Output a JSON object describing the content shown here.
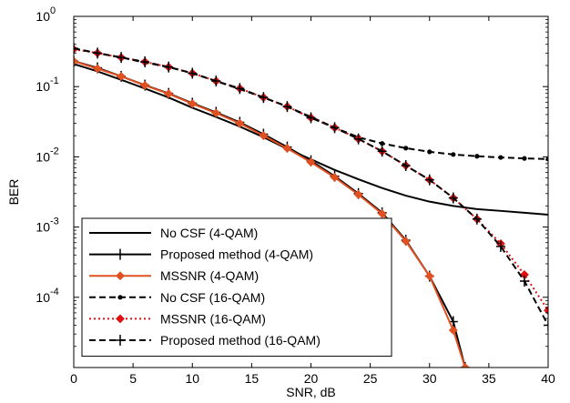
{
  "chart_data": {
    "type": "line",
    "title": "",
    "xlabel": "SNR, dB",
    "ylabel": "BER",
    "xlim": [
      0,
      40
    ],
    "ylim": [
      1e-05,
      1
    ],
    "yscale": "log",
    "grid": false,
    "legend_position": "bottom-left",
    "x_ticks": [
      0,
      5,
      10,
      15,
      20,
      25,
      30,
      35,
      40
    ],
    "x_tick_labels": [
      "0",
      "5",
      "10",
      "15",
      "20",
      "25",
      "30",
      "35",
      "40"
    ],
    "y_ticks": [
      1,
      0.1,
      0.01,
      0.001,
      0.0001
    ],
    "y_tick_labels": [
      {
        "base": "10",
        "exp": "0"
      },
      {
        "base": "10",
        "exp": "-1"
      },
      {
        "base": "10",
        "exp": "-2"
      },
      {
        "base": "10",
        "exp": "-3"
      },
      {
        "base": "10",
        "exp": "-4"
      }
    ],
    "series": [
      {
        "name": "No CSF (4-QAM)",
        "color": "#000000",
        "dash": "solid",
        "marker": "none",
        "x": [
          0,
          2,
          4,
          6,
          8,
          10,
          12,
          14,
          16,
          18,
          20,
          22,
          24,
          26,
          28,
          30,
          32,
          34,
          36,
          38,
          40
        ],
        "y": [
          0.21,
          0.165,
          0.125,
          0.094,
          0.07,
          0.05,
          0.037,
          0.027,
          0.019,
          0.013,
          0.0092,
          0.0065,
          0.0048,
          0.0036,
          0.0028,
          0.0023,
          0.002,
          0.0018,
          0.0017,
          0.0016,
          0.0015
        ]
      },
      {
        "name": "Proposed method (4-QAM)",
        "color": "#000000",
        "dash": "solid",
        "marker": "plus",
        "x": [
          0,
          2,
          4,
          6,
          8,
          10,
          12,
          14,
          16,
          18,
          20,
          22,
          24,
          26,
          28,
          30,
          32,
          33
        ],
        "y": [
          0.23,
          0.185,
          0.14,
          0.105,
          0.08,
          0.058,
          0.043,
          0.031,
          0.021,
          0.0138,
          0.0088,
          0.0053,
          0.003,
          0.0016,
          0.00065,
          0.0002,
          4.5e-05,
          1e-05
        ]
      },
      {
        "name": "MSSNR (4-QAM)",
        "color": "#e05020",
        "dash": "solid",
        "marker": "diamond",
        "x": [
          0,
          2,
          4,
          6,
          8,
          10,
          12,
          14,
          16,
          18,
          20,
          22,
          24,
          26,
          28,
          30,
          32,
          33
        ],
        "y": [
          0.23,
          0.18,
          0.14,
          0.104,
          0.079,
          0.057,
          0.042,
          0.03,
          0.02,
          0.0132,
          0.0084,
          0.0051,
          0.0029,
          0.00155,
          0.00063,
          0.0002,
          3.4e-05,
          1e-05
        ]
      },
      {
        "name": "No CSF (16-QAM)",
        "color": "#000000",
        "dash": "dashed",
        "marker": "dot",
        "x": [
          0,
          2,
          4,
          6,
          8,
          10,
          12,
          14,
          16,
          18,
          20,
          22,
          24,
          26,
          28,
          30,
          32,
          34,
          36,
          38,
          40
        ],
        "y": [
          0.35,
          0.3,
          0.26,
          0.22,
          0.19,
          0.155,
          0.12,
          0.092,
          0.07,
          0.052,
          0.037,
          0.026,
          0.019,
          0.0155,
          0.0133,
          0.0118,
          0.0108,
          0.0102,
          0.0098,
          0.0095,
          0.0093
        ]
      },
      {
        "name": "MSSNR (16-QAM)",
        "color": "#e01010",
        "dash": "dotted",
        "marker": "diamond",
        "x": [
          0,
          2,
          4,
          6,
          8,
          10,
          12,
          14,
          16,
          18,
          20,
          22,
          24,
          26,
          28,
          30,
          32,
          34,
          36,
          38,
          40
        ],
        "y": [
          0.34,
          0.3,
          0.26,
          0.225,
          0.19,
          0.155,
          0.12,
          0.094,
          0.07,
          0.052,
          0.036,
          0.026,
          0.018,
          0.012,
          0.0075,
          0.0047,
          0.0026,
          0.0013,
          0.00058,
          0.00021,
          6.5e-05
        ]
      },
      {
        "name": "Proposed method (16-QAM)",
        "color": "#000000",
        "dash": "dashed",
        "marker": "plus",
        "x": [
          0,
          2,
          4,
          6,
          8,
          10,
          12,
          14,
          16,
          18,
          20,
          22,
          24,
          26,
          28,
          30,
          32,
          34,
          36,
          38,
          40
        ],
        "y": [
          0.35,
          0.3,
          0.26,
          0.225,
          0.19,
          0.155,
          0.12,
          0.094,
          0.07,
          0.052,
          0.036,
          0.026,
          0.018,
          0.012,
          0.0075,
          0.0047,
          0.0026,
          0.0013,
          0.00053,
          0.00017,
          4e-05
        ]
      }
    ]
  }
}
